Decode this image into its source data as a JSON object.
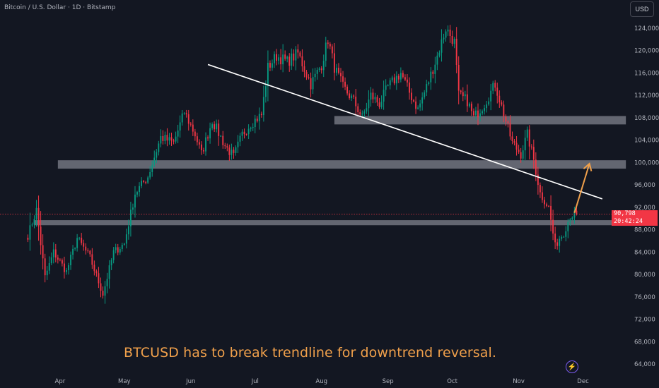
{
  "header": {
    "symbol_title": "Bitcoin / U.S. Dollar · 1D · Bitstamp",
    "currency_button": "USD"
  },
  "annotation_text": "BTCUSD has to break trendline for downtrend reversal.",
  "price_tag": {
    "price": "90,798",
    "countdown": "20:42:24"
  },
  "icons": {
    "bottom_right": "lightning-icon"
  },
  "colors": {
    "background": "#131722",
    "up_candle": "#089981",
    "down_candle": "#f23645",
    "zone_fill": "#9598a1",
    "trendline": "#ffffff",
    "arrow": "#f0a04b",
    "axis_text": "#b2b5be"
  },
  "chart_data": {
    "type": "candlestick",
    "title": "Bitcoin / U.S. Dollar · 1D · Bitstamp",
    "y_axis": {
      "position": "right",
      "range": [
        62500,
        126500
      ],
      "ticks": [
        64000,
        68000,
        72000,
        76000,
        80000,
        84000,
        88000,
        92000,
        96000,
        100000,
        104000,
        108000,
        112000,
        116000,
        120000,
        124000
      ],
      "tick_labels": [
        "64,000",
        "68,000",
        "72,000",
        "76,000",
        "80,000",
        "84,000",
        "88,000",
        "92,000",
        "96,000",
        "100,000",
        "104,000",
        "108,000",
        "112,000",
        "116,000",
        "120,000",
        "124,000"
      ]
    },
    "x_axis": {
      "labels": [
        "Apr",
        "May",
        "Jun",
        "Jul",
        "Aug",
        "Sep",
        "Oct",
        "Nov",
        "Dec"
      ],
      "label_day_index": [
        15,
        45,
        76,
        106,
        137,
        168,
        198,
        229,
        259
      ],
      "range_days": [
        -13,
        274
      ]
    },
    "price_anchors": [
      {
        "day": 0,
        "price": 87000
      },
      {
        "day": 4,
        "price": 91500
      },
      {
        "day": 8,
        "price": 79500
      },
      {
        "day": 12,
        "price": 84000
      },
      {
        "day": 18,
        "price": 80500
      },
      {
        "day": 23,
        "price": 86500
      },
      {
        "day": 29,
        "price": 83000
      },
      {
        "day": 35,
        "price": 76500
      },
      {
        "day": 40,
        "price": 84000
      },
      {
        "day": 45,
        "price": 85500
      },
      {
        "day": 50,
        "price": 94500
      },
      {
        "day": 56,
        "price": 97500
      },
      {
        "day": 62,
        "price": 104500
      },
      {
        "day": 68,
        "price": 103500
      },
      {
        "day": 73,
        "price": 109000
      },
      {
        "day": 78,
        "price": 105000
      },
      {
        "day": 81,
        "price": 101500
      },
      {
        "day": 86,
        "price": 107500
      },
      {
        "day": 92,
        "price": 103000
      },
      {
        "day": 96,
        "price": 101000
      },
      {
        "day": 100,
        "price": 105000
      },
      {
        "day": 104,
        "price": 107000
      },
      {
        "day": 109,
        "price": 108500
      },
      {
        "day": 112,
        "price": 117000
      },
      {
        "day": 116,
        "price": 119000
      },
      {
        "day": 121,
        "price": 118000
      },
      {
        "day": 126,
        "price": 119500
      },
      {
        "day": 132,
        "price": 114000
      },
      {
        "day": 137,
        "price": 117500
      },
      {
        "day": 140,
        "price": 122000
      },
      {
        "day": 143,
        "price": 117000
      },
      {
        "day": 147,
        "price": 113500
      },
      {
        "day": 152,
        "price": 111000
      },
      {
        "day": 156,
        "price": 108000
      },
      {
        "day": 160,
        "price": 112000
      },
      {
        "day": 164,
        "price": 110500
      },
      {
        "day": 168,
        "price": 113500
      },
      {
        "day": 174,
        "price": 116000
      },
      {
        "day": 178,
        "price": 112500
      },
      {
        "day": 182,
        "price": 109500
      },
      {
        "day": 186,
        "price": 113500
      },
      {
        "day": 191,
        "price": 119000
      },
      {
        "day": 195,
        "price": 124000
      },
      {
        "day": 199,
        "price": 121500
      },
      {
        "day": 201,
        "price": 112000
      },
      {
        "day": 205,
        "price": 111000
      },
      {
        "day": 208,
        "price": 108000
      },
      {
        "day": 213,
        "price": 110500
      },
      {
        "day": 218,
        "price": 114000
      },
      {
        "day": 221,
        "price": 110000
      },
      {
        "day": 226,
        "price": 103500
      },
      {
        "day": 230,
        "price": 101500
      },
      {
        "day": 233,
        "price": 105000
      },
      {
        "day": 236,
        "price": 100500
      },
      {
        "day": 239,
        "price": 94500
      },
      {
        "day": 243,
        "price": 92000
      },
      {
        "day": 246,
        "price": 85000
      },
      {
        "day": 248,
        "price": 86500
      },
      {
        "day": 250,
        "price": 87500
      },
      {
        "day": 253,
        "price": 90500
      },
      {
        "day": 256,
        "price": 90798
      }
    ],
    "last_price": 90798,
    "support_resistance_zones": [
      {
        "from_day": 143,
        "to_day": 279,
        "price_low": 106800,
        "price_high": 108300
      },
      {
        "from_day": 14,
        "to_day": 279,
        "price_low": 98900,
        "price_high": 100400
      },
      {
        "from_day": 3,
        "to_day": 279,
        "price_low": 88800,
        "price_high": 89700
      }
    ],
    "trendline": {
      "start": {
        "day": 84,
        "price": 117500
      },
      "end": {
        "day": 268,
        "price": 93500
      }
    },
    "arrow": {
      "start": {
        "day": 255,
        "price": 91000
      },
      "end": {
        "day": 262,
        "price": 99800
      }
    },
    "current_price_line": 90798,
    "grid": false,
    "legend": "none"
  }
}
